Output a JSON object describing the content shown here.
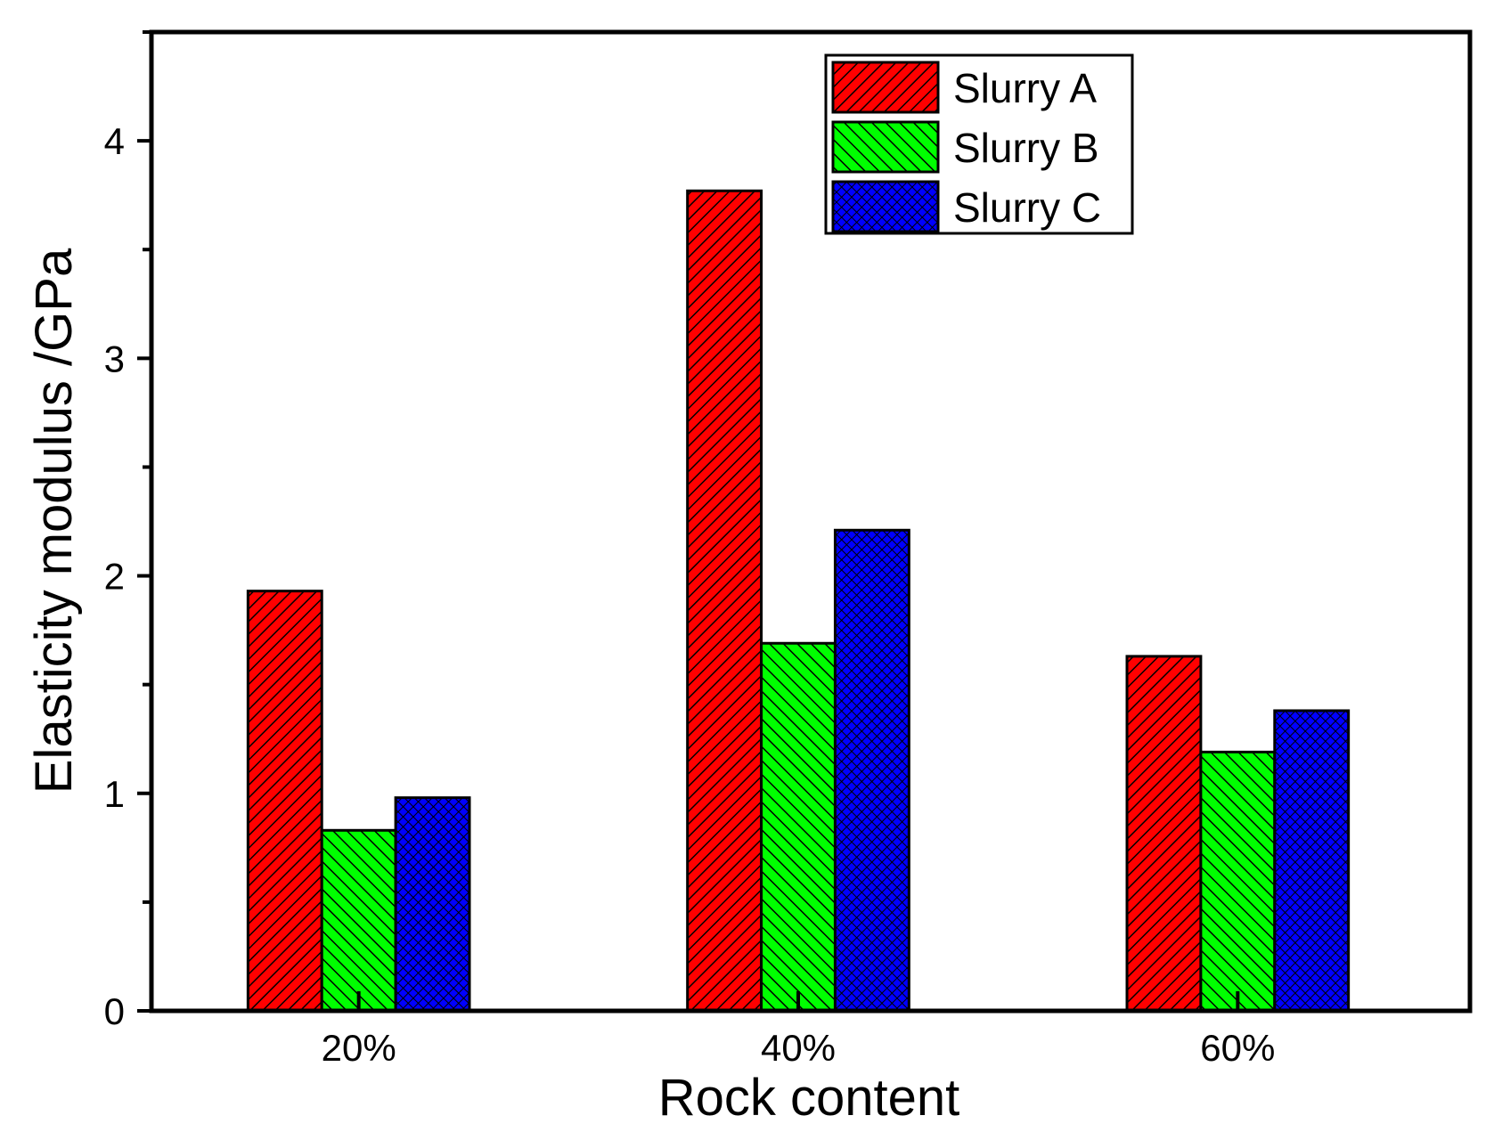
{
  "chart_data": {
    "type": "bar",
    "title": "",
    "xlabel": "Rock content",
    "ylabel": "Elasticity modulus /GPa",
    "categories": [
      "20%",
      "40%",
      "60%"
    ],
    "ylim": [
      0,
      4.5
    ],
    "yticks": [
      0,
      1,
      2,
      3,
      4
    ],
    "grid": false,
    "legend": "top-right",
    "series": [
      {
        "name": "Slurry A",
        "values": [
          1.93,
          3.77,
          1.63
        ],
        "color": "#ff0000",
        "pattern": "diagonal-hatch"
      },
      {
        "name": "Slurry B",
        "values": [
          0.83,
          1.69,
          1.19
        ],
        "color": "#00ff00",
        "pattern": "diagonal-hatch"
      },
      {
        "name": "Slurry C",
        "values": [
          0.98,
          2.21,
          1.38
        ],
        "color": "#0000ff",
        "pattern": "crosshatch"
      }
    ]
  }
}
